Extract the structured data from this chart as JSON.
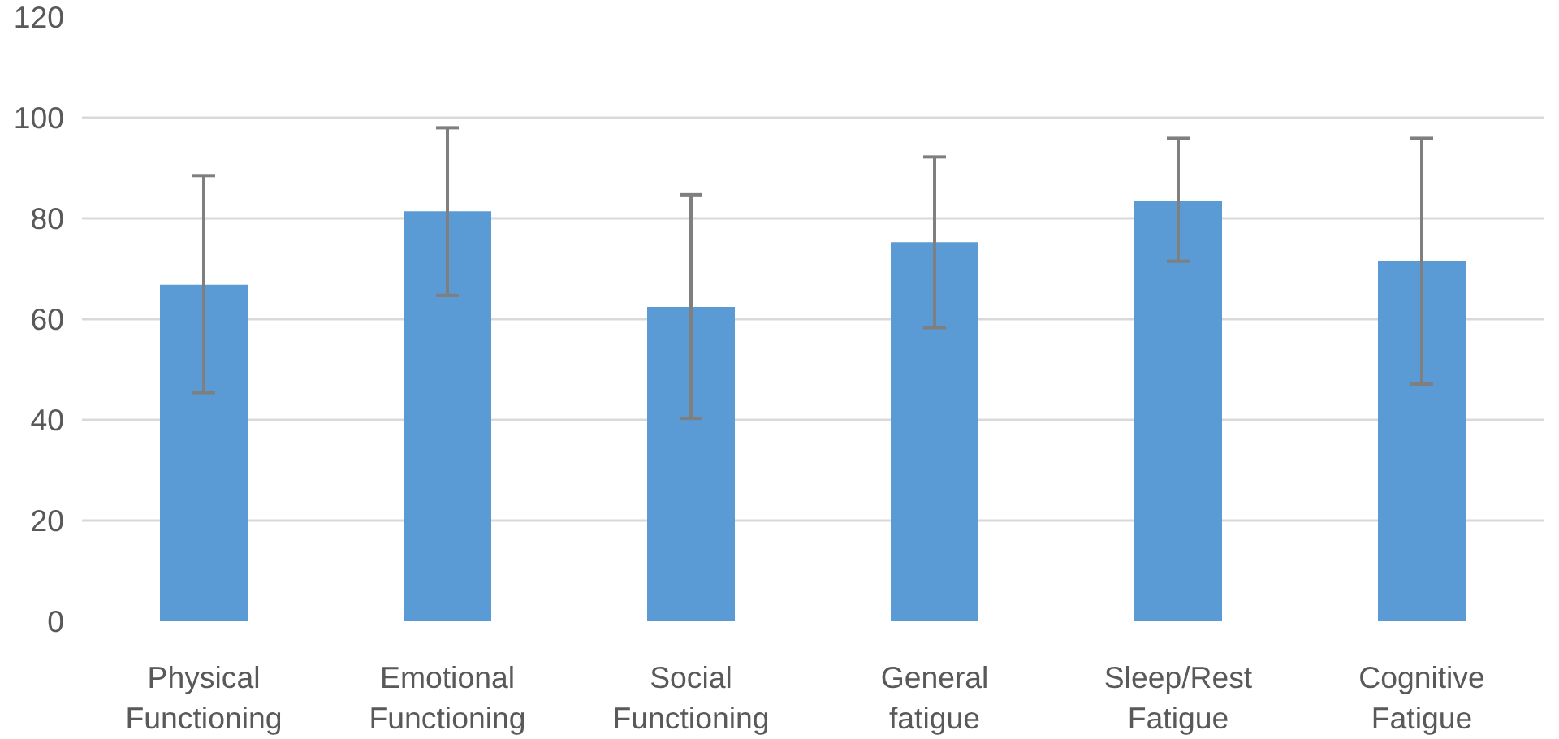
{
  "chart_data": {
    "type": "bar",
    "categories": [
      "Physical Functioning",
      "Emotional Functioning",
      "Social Functioning",
      "General fatigue",
      "Sleep/Rest Fatigue",
      "Cognitive Fatigue"
    ],
    "values": [
      66.8,
      81.4,
      62.4,
      75.3,
      83.4,
      71.5
    ],
    "errors": [
      [
        45.4,
        88.5
      ],
      [
        64.7,
        98
      ],
      [
        40.3,
        84.7
      ],
      [
        58.3,
        92.2
      ],
      [
        71.5,
        95.9
      ],
      [
        47.1,
        95.9
      ]
    ],
    "color": "#5b9bd5",
    "ylim": [
      0,
      120
    ],
    "yticks": [
      0,
      20,
      40,
      60,
      80,
      100,
      120
    ],
    "grid": "y"
  }
}
